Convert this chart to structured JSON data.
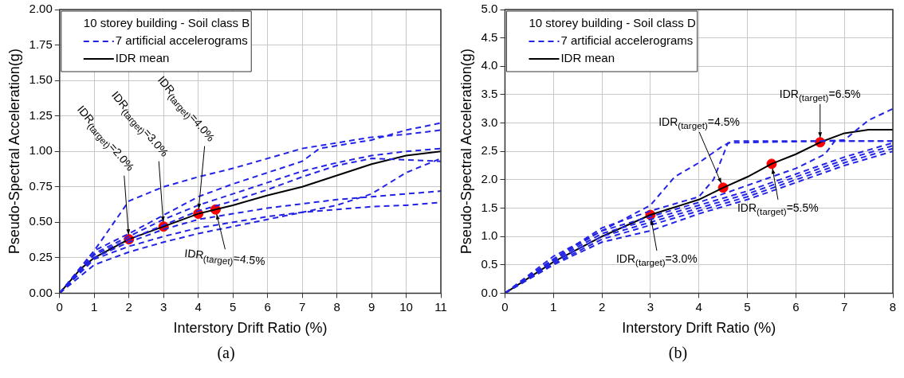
{
  "chart_data": [
    {
      "type": "line",
      "legend_title": "10 storey building - Soil class B",
      "xlabel": "Interstory Drift Ratio (%)",
      "ylabel": "Pseudo-Spectral Acceleration(g)",
      "xlim": [
        0,
        11
      ],
      "ylim": [
        0,
        2
      ],
      "xticks": [
        0,
        1,
        2,
        3,
        4,
        5,
        6,
        7,
        8,
        9,
        10,
        11
      ],
      "yticks": [
        {
          "value": 0,
          "label": "0.00"
        },
        {
          "value": 0.25,
          "label": "0.25"
        },
        {
          "value": 0.5,
          "label": "0.50"
        },
        {
          "value": 0.75,
          "label": "0.75"
        },
        {
          "value": 1,
          "label": "1.00"
        },
        {
          "value": 1.25,
          "label": "1.25"
        },
        {
          "value": 1.5,
          "label": "1.50"
        },
        {
          "value": 1.75,
          "label": "1.75"
        },
        {
          "value": 2,
          "label": "2.00"
        }
      ],
      "grid": true,
      "legend": "top left",
      "annotations": [
        {
          "text": "IDR$_{(target)}$=2.0%",
          "x": 2,
          "y": 0.38
        },
        {
          "text": "IDR$_{(target)}$=3.0%",
          "x": 3,
          "y": 0.47
        },
        {
          "text": "IDR$_{(target)}$=4.0%",
          "x": 4,
          "y": 0.56
        },
        {
          "text": "IDR$_{(target)}$=4.5%",
          "x": 4.5,
          "y": 0.59
        },
        "(a)"
      ],
      "series": [
        {
          "name": "7 artificial accelerograms",
          "color": "#2323e6",
          "line_style": "dashed",
          "marker": "none",
          "x": [
            0,
            0.5,
            1,
            2,
            3,
            4,
            5,
            6,
            7,
            8,
            9,
            10,
            11
          ],
          "values": [
            0,
            0.15,
            0.3,
            0.65,
            0.75,
            0.82,
            0.88,
            0.95,
            1.02,
            1.06,
            1.1,
            1.12,
            1.15
          ]
        },
        {
          "color": "#2323e6",
          "line_style": "dashed",
          "marker": "none",
          "x": [
            0,
            1,
            2,
            3,
            4,
            5,
            6,
            7,
            7.5,
            8,
            9,
            10,
            11
          ],
          "values": [
            0,
            0.3,
            0.42,
            0.55,
            0.68,
            0.77,
            0.85,
            0.93,
            1.02,
            1.04,
            1.08,
            1.15,
            1.2
          ]
        },
        {
          "color": "#2323e6",
          "line_style": "dashed",
          "marker": "none",
          "x": [
            0,
            1,
            2,
            3,
            4,
            5,
            6,
            7,
            8,
            9,
            10,
            11
          ],
          "values": [
            0,
            0.28,
            0.4,
            0.52,
            0.62,
            0.7,
            0.78,
            0.86,
            0.92,
            0.97,
            1,
            1.02
          ]
        },
        {
          "color": "#2323e6",
          "line_style": "dashed",
          "marker": "none",
          "x": [
            0,
            1,
            2,
            3,
            4,
            5,
            6,
            7,
            8,
            9,
            10,
            11
          ],
          "values": [
            0,
            0.27,
            0.38,
            0.48,
            0.58,
            0.65,
            0.73,
            0.82,
            0.9,
            0.95,
            0.94,
            0.93
          ]
        },
        {
          "color": "#2323e6",
          "line_style": "dashed",
          "marker": "none",
          "x": [
            0,
            1,
            2,
            3,
            4,
            5,
            6,
            7,
            8,
            9,
            10,
            11
          ],
          "values": [
            0,
            0.25,
            0.36,
            0.45,
            0.52,
            0.56,
            0.6,
            0.63,
            0.66,
            0.68,
            0.7,
            0.72
          ]
        },
        {
          "color": "#2323e6",
          "line_style": "dashed",
          "marker": "none",
          "x": [
            0,
            1,
            2,
            3,
            4,
            5,
            6,
            7,
            8,
            9,
            10,
            11
          ],
          "values": [
            0,
            0.24,
            0.33,
            0.4,
            0.46,
            0.5,
            0.54,
            0.57,
            0.59,
            0.61,
            0.62,
            0.64
          ]
        },
        {
          "color": "#2323e6",
          "line_style": "dashed",
          "marker": "none",
          "x": [
            0,
            1,
            2,
            3,
            4,
            5,
            6,
            7,
            8,
            9,
            10,
            11
          ],
          "values": [
            0,
            0.2,
            0.29,
            0.36,
            0.42,
            0.47,
            0.52,
            0.57,
            0.62,
            0.7,
            0.85,
            0.95
          ]
        },
        {
          "name": "IDR mean",
          "color": "#000000",
          "line_style": "solid",
          "marker": "none",
          "x": [
            0,
            0.6,
            1,
            2,
            3,
            4,
            4.5,
            5,
            6,
            7,
            8,
            9,
            10,
            11
          ],
          "values": [
            0,
            0.17,
            0.25,
            0.38,
            0.47,
            0.56,
            0.59,
            0.62,
            0.69,
            0.75,
            0.83,
            0.91,
            0.97,
            1
          ]
        },
        {
          "type": "scatter",
          "color": "#ff0000",
          "marker": "circle",
          "x": [
            2,
            3,
            4,
            4.5
          ],
          "values": [
            0.38,
            0.47,
            0.56,
            0.59
          ]
        }
      ]
    },
    {
      "type": "line",
      "legend_title": "10 storey building - Soil class D",
      "xlabel": "Interstory Drift Ratio (%)",
      "ylabel": "Pseudo-Spectral Acceleration(g)",
      "xlim": [
        0,
        8
      ],
      "ylim": [
        0,
        5
      ],
      "xticks": [
        0,
        1,
        2,
        3,
        4,
        5,
        6,
        7,
        8
      ],
      "yticks": [
        {
          "value": 0,
          "label": "0.0"
        },
        {
          "value": 0.5,
          "label": "0.5"
        },
        {
          "value": 1,
          "label": "1.0"
        },
        {
          "value": 1.5,
          "label": "1.5"
        },
        {
          "value": 2,
          "label": "2.0"
        },
        {
          "value": 2.5,
          "label": "2.5"
        },
        {
          "value": 3,
          "label": "3.0"
        },
        {
          "value": 3.5,
          "label": "3.5"
        },
        {
          "value": 4,
          "label": "4.0"
        },
        {
          "value": 4.5,
          "label": "4.5"
        },
        {
          "value": 5,
          "label": "5.0"
        }
      ],
      "grid": true,
      "legend": "top left",
      "annotations": [
        {
          "text": "IDR$_{(target)}$=3.0%",
          "x": 3,
          "y": 1.38
        },
        {
          "text": "IDR$_{(target)}$=4.5%",
          "x": 4.5,
          "y": 1.86
        },
        {
          "text": "IDR$_{(target)}$=5.5%",
          "x": 5.5,
          "y": 2.28
        },
        {
          "text": "IDR$_{(target)}$=6.5%",
          "x": 6.5,
          "y": 2.66
        },
        "(b)"
      ],
      "series": [
        {
          "name": "7 artificial accelerograms",
          "color": "#2323e6",
          "line_style": "dashed",
          "marker": "none",
          "x": [
            0,
            1,
            2,
            3,
            3.5,
            4,
            4.5,
            4.7,
            6.5,
            8
          ],
          "values": [
            0,
            0.65,
            1.1,
            1.55,
            2.05,
            2.3,
            2.6,
            2.68,
            2.68,
            2.68
          ]
        },
        {
          "color": "#2323e6",
          "line_style": "dashed",
          "marker": "none",
          "x": [
            0,
            1,
            2,
            3,
            4,
            4.3,
            4.6,
            6.5,
            7,
            7.5,
            8
          ],
          "values": [
            0,
            0.6,
            1.15,
            1.45,
            1.7,
            2,
            2.65,
            2.68,
            2.7,
            3.05,
            3.25
          ]
        },
        {
          "color": "#2323e6",
          "line_style": "dashed",
          "marker": "none",
          "x": [
            0,
            1,
            2,
            3,
            4,
            5,
            6,
            6.6,
            6.8,
            8
          ],
          "values": [
            0,
            0.6,
            1.1,
            1.35,
            1.6,
            1.9,
            2.2,
            2.45,
            2.68,
            2.68
          ]
        },
        {
          "color": "#2323e6",
          "line_style": "dashed",
          "marker": "none",
          "x": [
            0,
            1,
            2,
            3,
            4,
            5,
            6,
            7,
            8
          ],
          "values": [
            0,
            0.58,
            1.05,
            1.3,
            1.55,
            1.8,
            2.1,
            2.4,
            2.65
          ]
        },
        {
          "color": "#2323e6",
          "line_style": "dashed",
          "marker": "none",
          "x": [
            0,
            1,
            2,
            3,
            4,
            5,
            6,
            7,
            8
          ],
          "values": [
            0,
            0.55,
            1,
            1.25,
            1.5,
            1.75,
            2.05,
            2.35,
            2.6
          ]
        },
        {
          "color": "#2323e6",
          "line_style": "dashed",
          "marker": "none",
          "x": [
            0,
            1,
            2,
            3,
            4,
            5,
            6,
            7,
            8
          ],
          "values": [
            0,
            0.52,
            0.95,
            1.2,
            1.45,
            1.7,
            2,
            2.3,
            2.55
          ]
        },
        {
          "color": "#2323e6",
          "line_style": "dashed",
          "marker": "none",
          "x": [
            0,
            1,
            2,
            3,
            4,
            5,
            6,
            7,
            8
          ],
          "values": [
            0,
            0.5,
            0.9,
            1.1,
            1.4,
            1.65,
            1.95,
            2.25,
            2.5
          ]
        },
        {
          "name": "IDR mean",
          "color": "#000000",
          "line_style": "solid",
          "marker": "none",
          "x": [
            0,
            1,
            2,
            3,
            4,
            4.5,
            5,
            5.5,
            6,
            6.5,
            7,
            7.5,
            8
          ],
          "values": [
            0,
            0.55,
            1,
            1.38,
            1.65,
            1.86,
            2.05,
            2.28,
            2.45,
            2.66,
            2.82,
            2.88,
            2.88
          ]
        },
        {
          "type": "scatter",
          "color": "#ff0000",
          "marker": "circle",
          "x": [
            3,
            4.5,
            5.5,
            6.5
          ],
          "values": [
            1.38,
            1.86,
            2.28,
            2.66
          ]
        }
      ]
    }
  ]
}
